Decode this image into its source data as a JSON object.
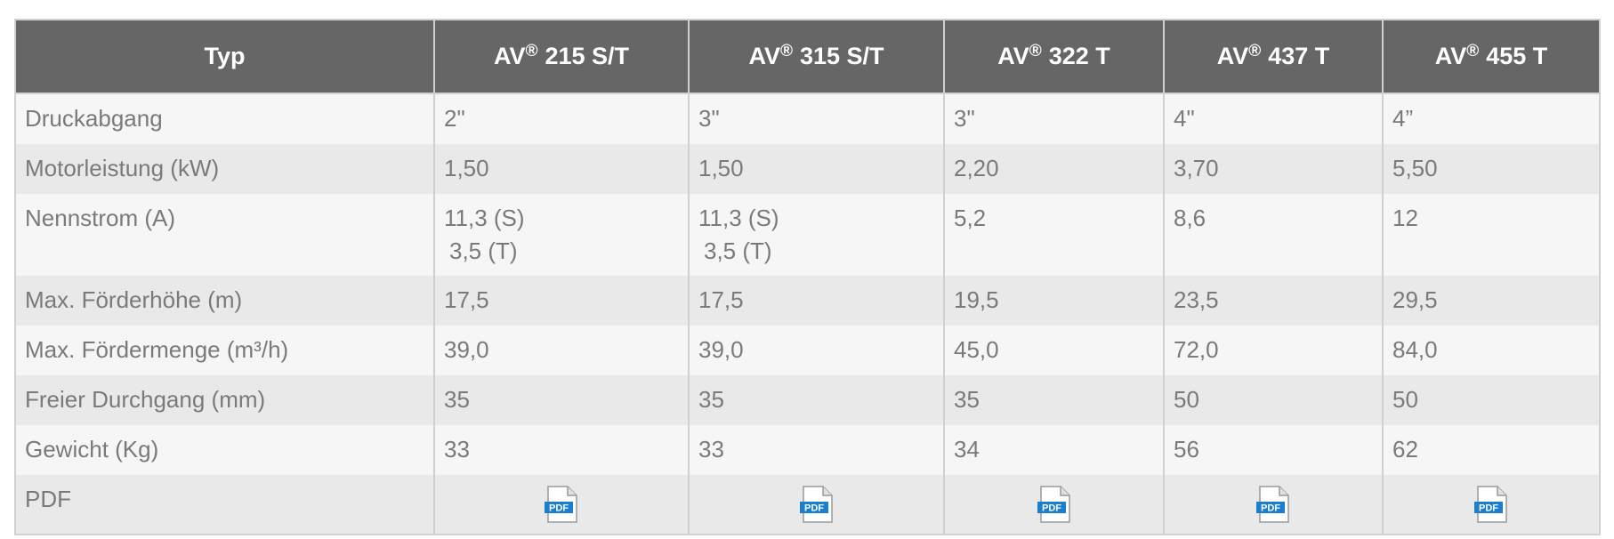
{
  "table": {
    "header": [
      "Typ",
      {
        "name": "AV",
        "sup": "®",
        "model": "215 S/T"
      },
      {
        "name": "AV",
        "sup": "®",
        "model": "315 S/T"
      },
      {
        "name": "AV",
        "sup": "®",
        "model": "322 T"
      },
      {
        "name": "AV",
        "sup": "®",
        "model": "437 T"
      },
      {
        "name": "AV",
        "sup": "®",
        "model": "455 T"
      }
    ],
    "rows": [
      [
        "Druckabgang",
        "2\"",
        "3\"",
        "3\"",
        "4\"",
        "4”"
      ],
      [
        "Motorleistung (kW)",
        "1,50",
        "1,50",
        "2,20",
        "3,70",
        "5,50"
      ],
      [
        "Nennstrom (A)",
        [
          "11,3 (S)",
          "3,5 (T)"
        ],
        [
          "11,3 (S)",
          "3,5 (T)"
        ],
        "5,2",
        "8,6",
        "12"
      ],
      [
        "Max. Förderhöhe (m)",
        "17,5",
        "17,5",
        "19,5",
        "23,5",
        "29,5"
      ],
      [
        "Max. Fördermenge (m³/h)",
        "39,0",
        "39,0",
        "45,0",
        "72,0",
        "84,0"
      ],
      [
        "Freier Durchgang (mm)",
        "35",
        "35",
        "35",
        "50",
        "50"
      ],
      [
        "Gewicht (Kg)",
        "33",
        "33",
        "34",
        "56",
        "62"
      ]
    ],
    "pdf_row": {
      "label": "PDF",
      "icon_text": "PDF"
    }
  }
}
